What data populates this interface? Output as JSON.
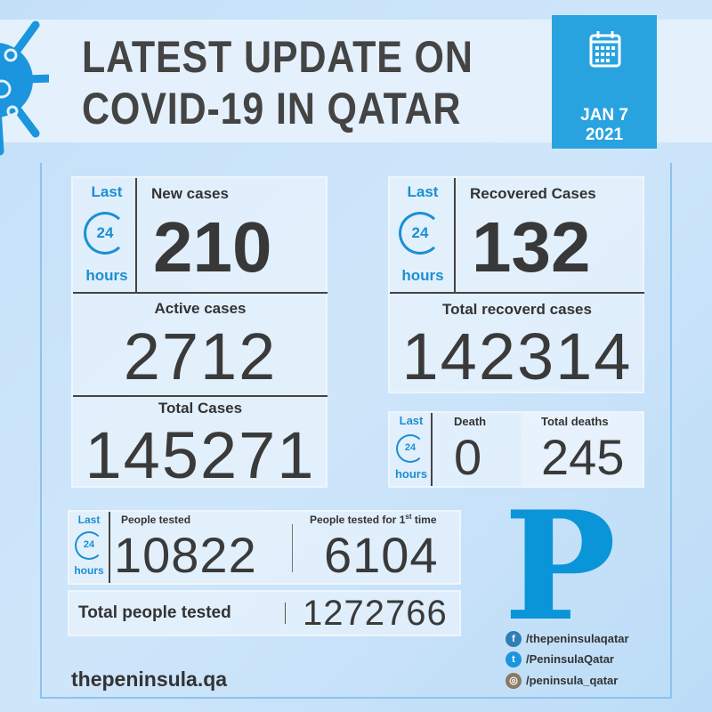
{
  "header": {
    "title_line1": "LATEST UPDATE ON",
    "title_line2": "COVID-19 IN QATAR",
    "date_line1": "JAN 7",
    "date_line2": "2021",
    "icon": "calendar-icon"
  },
  "last24": {
    "last": "Last",
    "num": "24",
    "hours": "hours"
  },
  "cases": {
    "new_label": "New cases",
    "new_value": "210",
    "active_label": "Active cases",
    "active_value": "2712",
    "total_label": "Total Cases",
    "total_value": "145271"
  },
  "recovered": {
    "label": "Recovered Cases",
    "value": "132",
    "total_label": "Total recoverd cases",
    "total_value": "142314"
  },
  "deaths": {
    "label": "Death",
    "value": "0",
    "total_label": "Total deaths",
    "total_value": "245"
  },
  "tests": {
    "label": "People tested",
    "value": "10822",
    "first_label": "People tested for 1",
    "first_sup": "st",
    "first_suffix": " time",
    "first_value": "6104",
    "total_label": "Total people tested",
    "total_value": "1272766"
  },
  "brand": {
    "logo": "P",
    "site": "thepeninsula.qa",
    "facebook": "/thepeninsulaqatar",
    "twitter": "/PeninsulaQatar",
    "instagram": "/peninsula_qatar"
  },
  "colors": {
    "accent": "#29a3e0",
    "text": "#3d3d3d"
  }
}
